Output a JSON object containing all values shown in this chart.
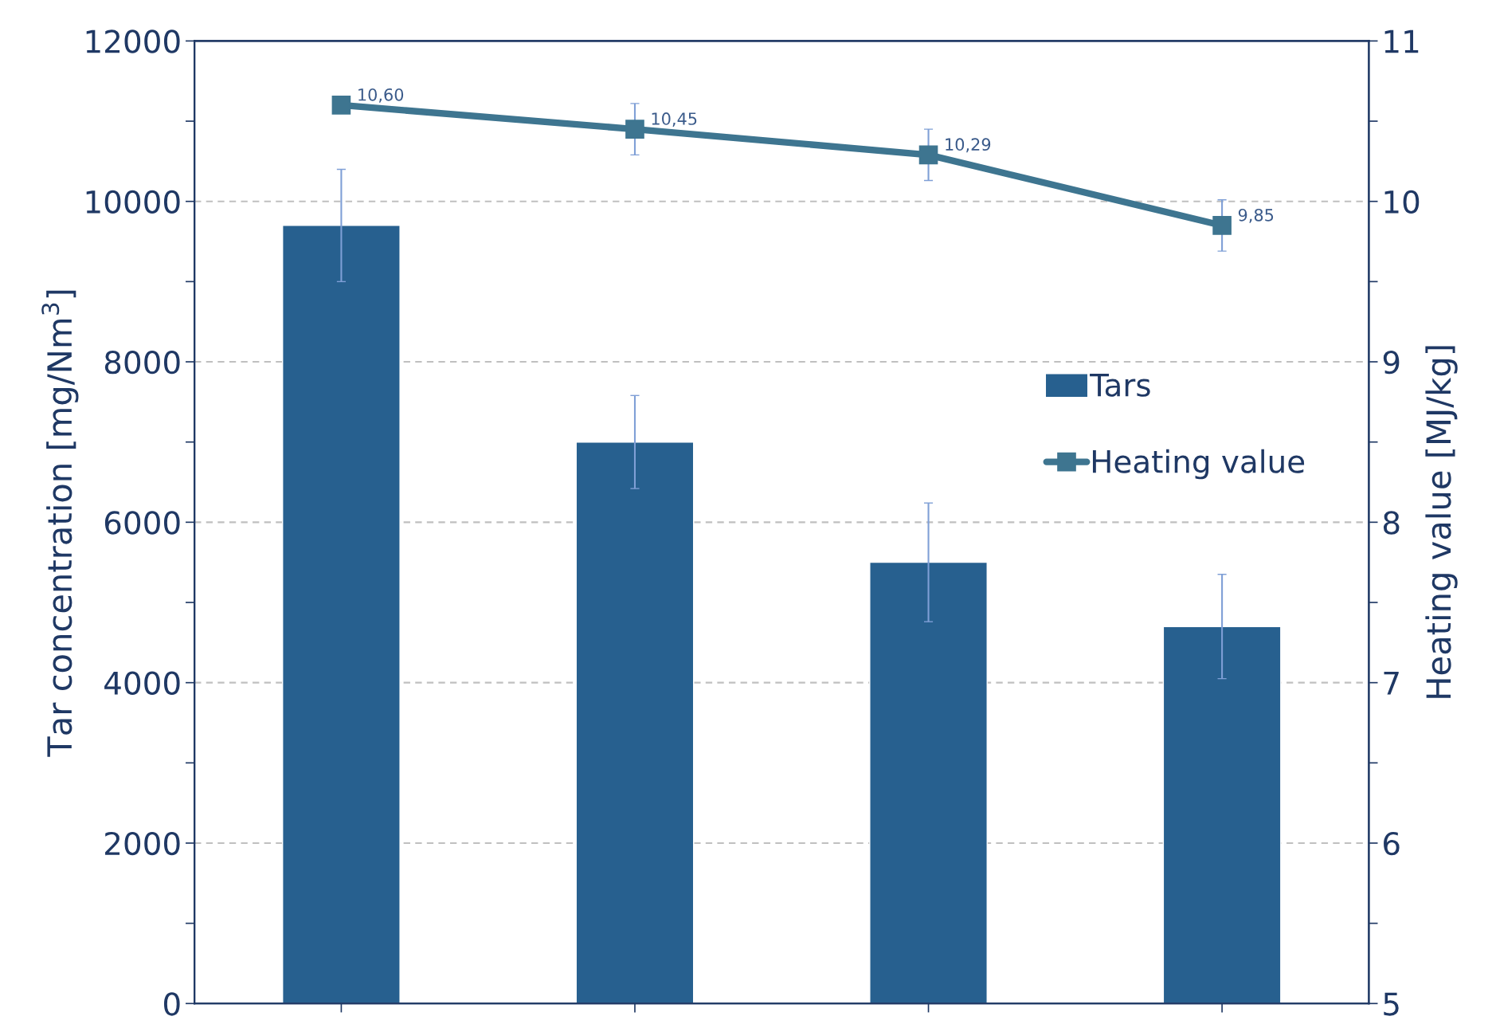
{
  "chart_data": {
    "type": "bar",
    "ylabel": "Tar concentration [mg/Nm$^{3}$]",
    "y2label": "Heating value [MJ/kg]",
    "categories": [
      null,
      null,
      null,
      null
    ],
    "series": [
      {
        "name": "Tars",
        "color": "#27608f",
        "values": [
          9700,
          7000,
          5500,
          4700
        ],
        "errors": [
          700,
          580,
          740,
          650
        ]
      },
      {
        "name": "Heating value",
        "type": "line",
        "axis": "y2",
        "color": "#3e7590",
        "marker": "square",
        "values": [
          10.6,
          10.45,
          10.29,
          9.85
        ],
        "errors": [
          null,
          0.16,
          0.16,
          0.16
        ],
        "value_labels": [
          "10,60",
          "10,45",
          "10,29",
          "9,85"
        ]
      }
    ],
    "ylim": [
      0,
      12000
    ],
    "yticks": [
      0,
      {
        "value": 1000,
        "label": null
      },
      2000,
      {
        "value": 3000,
        "label": null
      },
      4000,
      {
        "value": 5000,
        "label": null
      },
      6000,
      {
        "value": 7000,
        "label": null
      },
      8000,
      {
        "value": 9000,
        "label": null
      },
      10000,
      {
        "value": 11000,
        "label": null
      },
      12000
    ],
    "y2lim": [
      5,
      11
    ],
    "y2ticks": [
      5,
      {
        "value": 5.5,
        "label": null
      },
      6,
      {
        "value": 6.5,
        "label": null
      },
      7,
      {
        "value": 7.5,
        "label": null
      },
      8,
      {
        "value": 8.5,
        "label": null
      },
      9,
      {
        "value": 9.5,
        "label": null
      },
      10,
      {
        "value": 10.5,
        "label": null
      },
      11
    ],
    "grid": "y",
    "legend": "right"
  }
}
